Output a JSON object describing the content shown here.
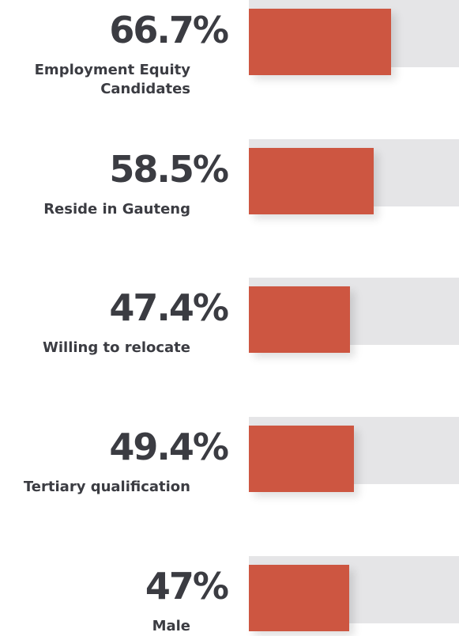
{
  "chart_data": {
    "type": "bar",
    "orientation": "horizontal",
    "categories": [
      "Employment Equity Candidates",
      "Reside in Gauteng",
      "Willing to relocate",
      "Tertiary qualification",
      "Male"
    ],
    "values": [
      66.7,
      58.5,
      47.4,
      49.4,
      47
    ],
    "value_labels": [
      "66.7%",
      "58.5%",
      "47.4%",
      "49.4%",
      "47%"
    ],
    "color": "#cd5641",
    "track_color": "#e5e5e7",
    "xlim": [
      0,
      100
    ]
  }
}
